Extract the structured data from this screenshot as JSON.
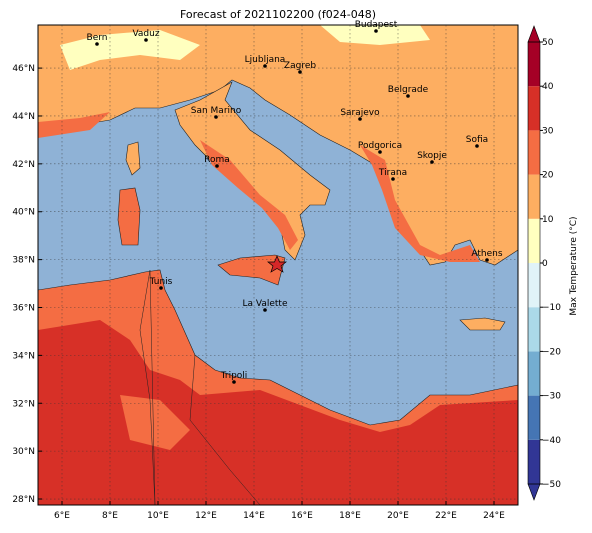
{
  "map": {
    "title": "Forecast of 2021102200 (f024-048)",
    "xlim": [
      5,
      25
    ],
    "ylim": [
      27.75,
      47.8
    ],
    "grid": true,
    "xticks": [
      {
        "value": 6,
        "label": "6°E"
      },
      {
        "value": 8,
        "label": "8°E"
      },
      {
        "value": 10,
        "label": "10°E"
      },
      {
        "value": 12,
        "label": "12°E"
      },
      {
        "value": 14,
        "label": "14°E"
      },
      {
        "value": 16,
        "label": "16°E"
      },
      {
        "value": 18,
        "label": "18°E"
      },
      {
        "value": 20,
        "label": "20°E"
      },
      {
        "value": 22,
        "label": "22°E"
      },
      {
        "value": 24,
        "label": "24°E"
      }
    ],
    "yticks": [
      {
        "value": 28,
        "label": "28°N"
      },
      {
        "value": 30,
        "label": "30°N"
      },
      {
        "value": 32,
        "label": "32°N"
      },
      {
        "value": 34,
        "label": "34°N"
      },
      {
        "value": 36,
        "label": "36°N"
      },
      {
        "value": 38,
        "label": "38°N"
      },
      {
        "value": 40,
        "label": "40°N"
      },
      {
        "value": 42,
        "label": "42°N"
      },
      {
        "value": 44,
        "label": "44°N"
      },
      {
        "value": 46,
        "label": "46°N"
      }
    ],
    "cities": [
      "Bern",
      "Vaduz",
      "Budapest",
      "Ljubljana",
      "Zagreb",
      "San Marino",
      "Belgrade",
      "Sarajevo",
      "Sofia",
      "Roma",
      "Podgorica",
      "Skopje",
      "Tirana",
      "Athens",
      "Tunis",
      "La Valette",
      "Tripoli"
    ],
    "colorbar": {
      "label": "Max Temperature (°C)",
      "ticks": [
        {
          "value": -50,
          "label": "−50"
        },
        {
          "value": -40,
          "label": "−40"
        },
        {
          "value": -30,
          "label": "−30"
        },
        {
          "value": -20,
          "label": "−20"
        },
        {
          "value": -10,
          "label": "−10"
        },
        0,
        10,
        20,
        30,
        40,
        50
      ],
      "colors": [
        "#313695",
        "#4575b4",
        "#74add1",
        "#abd9e9",
        "#e0f3f8",
        "#ffffbf",
        "#fdae61",
        "#f46d43",
        "#d73027",
        "#a50026"
      ]
    }
  }
}
